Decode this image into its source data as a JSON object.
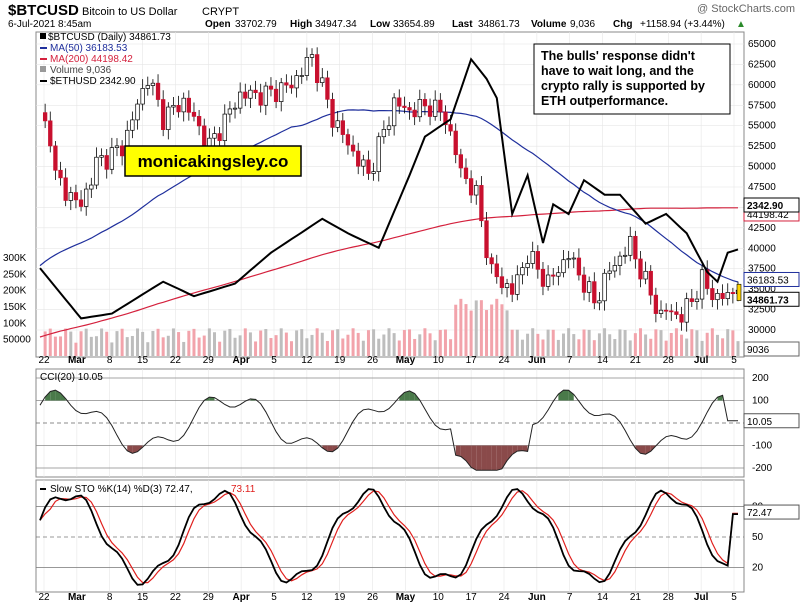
{
  "header": {
    "symbol": "$BTCUSD",
    "name": "Bitcoin to US Dollar",
    "exchange": "CRYPT",
    "watermark": "@ StockCharts.com",
    "date": "6-Jul-2021 8:45am",
    "open_label": "Open",
    "open": "33702.79",
    "high_label": "High",
    "high": "34947.34",
    "low_label": "Low",
    "low": "33654.89",
    "last_label": "Last",
    "last": "34861.73",
    "volume_label": "Volume",
    "volume": "9,036",
    "chg_label": "Chg",
    "chg": "+1158.94 (+3.44%)",
    "chg_arrow": "▲"
  },
  "legend": {
    "btc": "$BTCUSD (Daily) 34861.73",
    "ma50": "MA(50) 36183.53",
    "ma200": "MA(200) 44198.42",
    "volume": "Volume 9,036",
    "eth": "$ETHUSD 2342.90"
  },
  "annotation": "The bulls' response didn't have to wait long, and the crypto rally is supported by ETH outperformance.",
  "brand_box": "monicakingsley.co",
  "colors": {
    "up": "#ffffff",
    "down": "#c8102e",
    "ma50": "#1f2f9c",
    "ma200": "#d4213d",
    "eth": "#000000",
    "vol_up": "#bdbdbd",
    "vol_down": "#f2a3ab",
    "cci_pos": "#4a7a4a",
    "cci_neg": "#8a4a4a",
    "sto_k": "#000000",
    "sto_d": "#e0201e",
    "brand_bg": "#ffff00"
  },
  "price_axis": {
    "ticks": [
      "65000",
      "62500",
      "60000",
      "57500",
      "55000",
      "52500",
      "50000",
      "47500",
      "45000",
      "42500",
      "40000",
      "37500",
      "35000",
      "32500",
      "30000"
    ],
    "flags": {
      "ma200": "44198.42",
      "eth": "2342.90",
      "ma50": "36183.53",
      "last": "34861.73",
      "volume": "9036"
    }
  },
  "volume_axis": {
    "ticks": [
      "300K",
      "250K",
      "200K",
      "150K",
      "100K",
      "50000"
    ]
  },
  "x_axis": {
    "labels": [
      "22",
      "Mar",
      "8",
      "15",
      "22",
      "29",
      "Apr",
      "5",
      "12",
      "19",
      "26",
      "May",
      "10",
      "17",
      "24",
      "Jun",
      "7",
      "14",
      "21",
      "28",
      "Jul",
      "5"
    ]
  },
  "cci": {
    "title": "CCI(20) 10.05",
    "ticks": [
      "200",
      "100",
      "-100",
      "-200"
    ],
    "flag": "10.05"
  },
  "sto": {
    "title_prefix": "Slow STO %K(14) %D(3) 72.47,",
    "title_d": "73.11",
    "ticks": [
      "80",
      "50",
      "20"
    ],
    "flag": "72.47"
  },
  "chart_data": [
    {
      "type": "candlestick",
      "title": "$BTCUSD (Daily)",
      "ylim": [
        28000,
        66500
      ],
      "x_start": "2021-02-20",
      "x_end": "2021-07-06",
      "ohlc_anchor_close": [
        [
          "2021-02-20",
          56000
        ],
        [
          "2021-02-22",
          54000
        ],
        [
          "2021-02-23",
          48800
        ],
        [
          "2021-02-25",
          47000
        ],
        [
          "2021-02-28",
          45200
        ],
        [
          "2021-03-03",
          50400
        ],
        [
          "2021-03-08",
          52300
        ],
        [
          "2021-03-13",
          61000
        ],
        [
          "2021-03-16",
          56000
        ],
        [
          "2021-03-20",
          58000
        ],
        [
          "2021-03-25",
          52500
        ],
        [
          "2021-03-31",
          58800
        ],
        [
          "2021-04-05",
          58800
        ],
        [
          "2021-04-10",
          60000
        ],
        [
          "2021-04-14",
          63500
        ],
        [
          "2021-04-18",
          56000
        ],
        [
          "2021-04-22",
          51700
        ],
        [
          "2021-04-25",
          49000
        ],
        [
          "2021-04-30",
          57800
        ],
        [
          "2021-05-03",
          56800
        ],
        [
          "2021-05-07",
          57500
        ],
        [
          "2021-05-10",
          56000
        ],
        [
          "2021-05-13",
          49500
        ],
        [
          "2021-05-16",
          46500
        ],
        [
          "2021-05-19",
          37000
        ],
        [
          "2021-05-23",
          34700
        ],
        [
          "2021-05-26",
          39200
        ],
        [
          "2021-05-30",
          35700
        ],
        [
          "2021-06-03",
          39200
        ],
        [
          "2021-06-08",
          33400
        ],
        [
          "2021-06-11",
          37300
        ],
        [
          "2021-06-15",
          40500
        ],
        [
          "2021-06-18",
          35800
        ],
        [
          "2021-06-21",
          31600
        ],
        [
          "2021-06-22",
          32500
        ],
        [
          "2021-06-25",
          31600
        ],
        [
          "2021-06-29",
          36000
        ],
        [
          "2021-07-02",
          33800
        ],
        [
          "2021-07-06",
          34861.73
        ]
      ]
    },
    {
      "type": "line",
      "series": [
        {
          "name": "MA(50)",
          "last": 36183.53
        },
        {
          "name": "MA(200)",
          "last": 44198.42
        },
        {
          "name": "$ETHUSD",
          "last": 2342.9
        }
      ]
    },
    {
      "type": "bar",
      "name": "Volume",
      "last": 9036,
      "ylim": [
        0,
        300000
      ]
    },
    {
      "type": "line",
      "name": "CCI(20)",
      "last": 10.05,
      "ylim": [
        -230,
        230
      ],
      "reference_lines": [
        200,
        100,
        0,
        -100,
        -200
      ]
    },
    {
      "type": "line",
      "name": "Slow STO %K(14) %D(3)",
      "k_last": 72.47,
      "d_last": 73.11,
      "ylim": [
        0,
        100
      ],
      "reference_lines": [
        80,
        50,
        20
      ]
    }
  ]
}
